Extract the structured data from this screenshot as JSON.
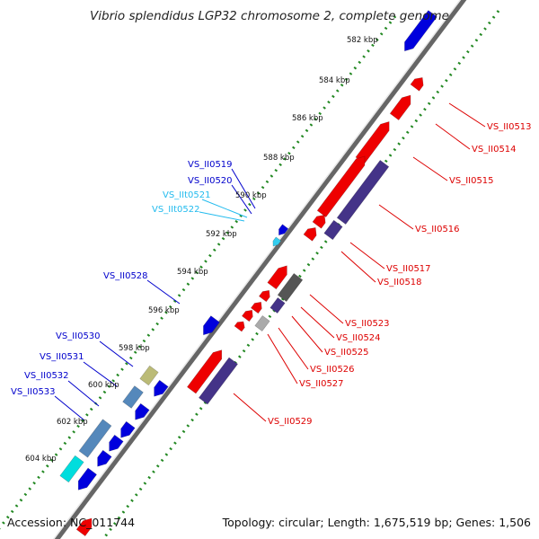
{
  "title": "Vibrio splendidus LGP32 chromosome 2, complete genome",
  "footer": {
    "accession": "Accession: NC_011744",
    "summary": "Topology: circular; Length: 1,675,519 bp; Genes: 1,506"
  },
  "colors": {
    "forward_gene": "#0000dd",
    "reverse_gene": "#ee0000",
    "trna": "#33ccee",
    "forward_label": "#0000cc",
    "reverse_label": "#dd0000",
    "trna_label": "#22bbee",
    "tick_dots": "#228822",
    "backbone": "#666666"
  },
  "kbp_labels": [
    "582 kbp",
    "584 kbp",
    "586 kbp",
    "588 kbp",
    "590 kbp",
    "592 kbp",
    "594 kbp",
    "596 kbp",
    "598 kbp",
    "600 kbp",
    "602 kbp",
    "604 kbp"
  ],
  "forward_labels": [
    "VS_II0519",
    "VS_II0520",
    "VS_II0528",
    "VS_II0530",
    "VS_II0531",
    "VS_II0532",
    "VS_II0533"
  ],
  "trna_labels": [
    "VS_IIt0521",
    "VS_IIt0522"
  ],
  "reverse_labels": [
    "VS_II0513",
    "VS_II0514",
    "VS_II0515",
    "VS_II0516",
    "VS_II0517",
    "VS_II0518",
    "VS_II0523",
    "VS_II0524",
    "VS_II0525",
    "VS_II0526",
    "VS_II0527",
    "VS_II0529"
  ]
}
